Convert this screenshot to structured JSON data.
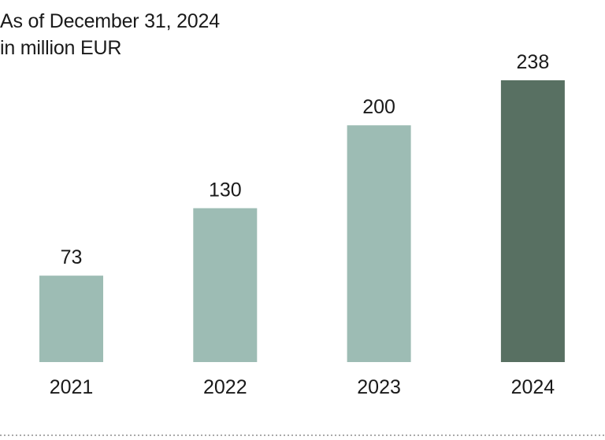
{
  "header": {
    "line1": "As of December 31, 2024",
    "line2": "in million EUR"
  },
  "chart_data": {
    "type": "bar",
    "title": "As of December 31, 2024",
    "subtitle": "in million EUR",
    "categories": [
      "2021",
      "2022",
      "2023",
      "2024"
    ],
    "values": [
      73,
      130,
      200,
      238
    ],
    "colors": [
      "#9dbcb4",
      "#9dbcb4",
      "#9dbcb4",
      "#587062"
    ],
    "xlabel": "",
    "ylabel": "",
    "grid": false,
    "legend": "none"
  },
  "footer": {
    "rule_color": "#777777"
  }
}
